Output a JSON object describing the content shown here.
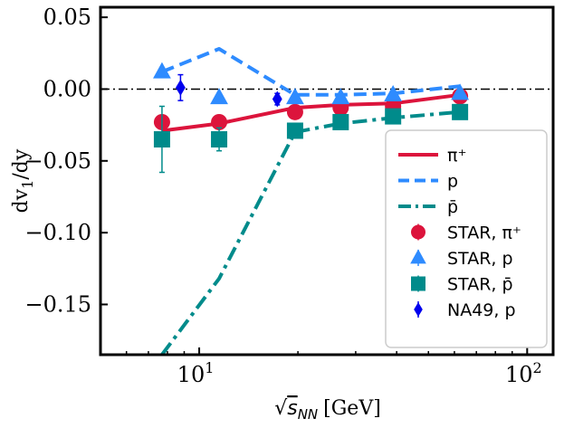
{
  "chart_data": {
    "type": "line",
    "xlabel_prefix": "√",
    "xlabel_var": "s",
    "xlabel_sub": "NN",
    "xlabel_unit": "[GeV]",
    "ylabel_main": "dv",
    "ylabel_sub": "1",
    "ylabel_tail": "/dy",
    "xscale": "log",
    "xlim": [
      5,
      120
    ],
    "ylim": [
      -0.185,
      0.057
    ],
    "xticks": [
      {
        "value": 10,
        "base": "10",
        "exp": "1"
      },
      {
        "value": 100,
        "base": "10",
        "exp": "2"
      }
    ],
    "yticks": [
      {
        "value": 0.05,
        "label": "0.05"
      },
      {
        "value": 0.0,
        "label": "0.00"
      },
      {
        "value": -0.05,
        "label": "−0.05"
      },
      {
        "value": -0.1,
        "label": "−0.10"
      },
      {
        "value": -0.15,
        "label": "−0.15"
      }
    ],
    "reference_line_y": 0,
    "legend_position": "lower-right",
    "lines": [
      {
        "legend": "π⁺",
        "style": "solid",
        "color": "#dc143c",
        "x": [
          7.7,
          11.5,
          19.6,
          27,
          39,
          62.4
        ],
        "y": [
          -0.029,
          -0.024,
          -0.013,
          -0.011,
          -0.01,
          -0.004
        ]
      },
      {
        "legend": "p",
        "style": "dashed",
        "color": "#2e8bff",
        "x": [
          7.7,
          11.5,
          19.6,
          27,
          39,
          62.4
        ],
        "y": [
          0.012,
          0.028,
          -0.004,
          -0.004,
          -0.003,
          0.002
        ]
      },
      {
        "legend": "p̄",
        "style": "dashdot",
        "color": "#008b8b",
        "x": [
          7.7,
          11.5,
          19.6,
          27,
          39,
          62.4
        ],
        "y": [
          -0.185,
          -0.132,
          -0.03,
          -0.024,
          -0.02,
          -0.016
        ]
      }
    ],
    "points": [
      {
        "legend": "STAR, π⁺",
        "marker": "circle",
        "color": "#dc143c",
        "x": [
          7.7,
          11.5,
          19.6,
          27,
          39,
          62.4
        ],
        "y": [
          -0.023,
          -0.023,
          -0.016,
          -0.013,
          -0.012,
          -0.005
        ],
        "err": [
          0.004,
          0.003,
          0.002,
          0.002,
          0.002,
          0.002
        ]
      },
      {
        "legend": "STAR, p",
        "marker": "triangle",
        "color": "#2e8bff",
        "x": [
          7.7,
          11.5,
          19.6,
          27,
          39,
          62.4
        ],
        "y": [
          0.012,
          -0.006,
          -0.006,
          -0.006,
          -0.004,
          -0.003
        ],
        "err": [
          0.002,
          0.002,
          0.002,
          0.002,
          0.002,
          0.002
        ]
      },
      {
        "legend": "STAR, p̄",
        "marker": "square",
        "color": "#008b8b",
        "x": [
          7.7,
          11.5,
          19.6,
          27,
          39,
          62.4
        ],
        "y": [
          -0.035,
          -0.035,
          -0.029,
          -0.023,
          -0.019,
          -0.016
        ],
        "err": [
          0.023,
          0.008,
          0.003,
          0.002,
          0.002,
          0.002
        ]
      },
      {
        "legend": "NA49, p",
        "marker": "diamond",
        "color": "#0000ee",
        "x": [
          8.77,
          17.3
        ],
        "y": [
          0.001,
          -0.007
        ],
        "err": [
          0.009,
          0.004
        ]
      }
    ]
  }
}
